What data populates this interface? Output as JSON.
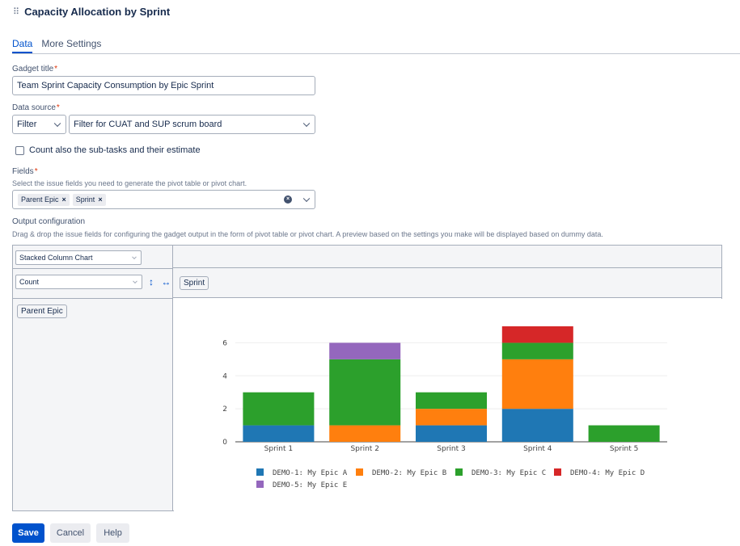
{
  "header": {
    "title": "Capacity Allocation by Sprint"
  },
  "tabs": [
    {
      "label": "Data"
    },
    {
      "label": "More Settings"
    }
  ],
  "form": {
    "gadget_title_label": "Gadget title",
    "gadget_title_value": "Team Sprint Capacity Consumption by Epic Sprint",
    "data_source_label": "Data source",
    "data_source_type": "Filter",
    "data_source_value": "Filter for CUAT and SUP scrum board",
    "subtasks_label": "Count also the sub-tasks and their estimate",
    "fields_label": "Fields",
    "fields_help": "Select the issue fields you need to generate the pivot table or pivot chart.",
    "fields_tags": [
      "Parent Epic",
      "Sprint"
    ],
    "output_label": "Output configuration",
    "output_help": "Drag & drop the issue fields for configuring the gadget output in the form of pivot table or pivot chart. A preview based on the settings you make will be displayed based on dummy data.",
    "required_mark": "*"
  },
  "pivot": {
    "chart_type": "Stacked Column Chart",
    "aggregation": "Count",
    "arrows": "↕ ↔",
    "column_field": "Sprint",
    "row_field": "Parent Epic"
  },
  "icons": {
    "drag": "drag-handle-icon",
    "clear": "clear-icon",
    "remove": "×"
  },
  "chart_data": {
    "type": "bar",
    "stacked": true,
    "categories": [
      "Sprint 1",
      "Sprint 2",
      "Sprint 3",
      "Sprint 4",
      "Sprint 5"
    ],
    "ylim": [
      0,
      7
    ],
    "yticks": [
      0,
      2,
      4,
      6
    ],
    "legend_position": "bottom",
    "series": [
      {
        "name": "DEMO-1: My Epic A",
        "color": "#1f77b4",
        "values": [
          1,
          0,
          1,
          2,
          0
        ]
      },
      {
        "name": "DEMO-2: My Epic B",
        "color": "#ff7f0e",
        "values": [
          0,
          1,
          1,
          3,
          0
        ]
      },
      {
        "name": "DEMO-3: My Epic C",
        "color": "#2ca02c",
        "values": [
          2,
          4,
          1,
          1,
          1
        ]
      },
      {
        "name": "DEMO-4: My Epic D",
        "color": "#d62728",
        "values": [
          0,
          0,
          0,
          1,
          0
        ]
      },
      {
        "name": "DEMO-5: My Epic E",
        "color": "#9467bd",
        "values": [
          0,
          1,
          0,
          0,
          0
        ]
      }
    ]
  },
  "buttons": {
    "save": "Save",
    "cancel": "Cancel",
    "help": "Help"
  }
}
